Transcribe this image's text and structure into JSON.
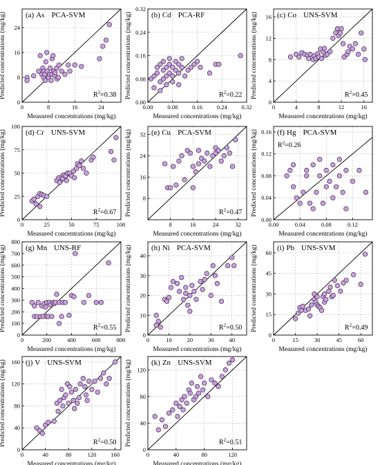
{
  "figure": {
    "point_color": "#c9a0dc",
    "point_edge": "#3b2a48",
    "grid": true,
    "reference_line": "1:1 diagonal"
  },
  "chart_data": [
    {
      "panel": "(a)",
      "element": "As",
      "method": "PCA-SVM",
      "r2_label": "0.38",
      "type": "scatter",
      "xlabel": "Measured concentrations (mg/kg)",
      "ylabel": "Predicted concentrations (mg/kg)",
      "xlim": [
        0,
        30
      ],
      "ylim": [
        0,
        30
      ],
      "xticks": [
        0,
        8,
        16,
        24
      ],
      "yticks": [
        0,
        8,
        16,
        24
      ],
      "tick_labels": [
        "0",
        "8",
        "16",
        "24"
      ],
      "x": [
        1.5,
        1.5,
        3.5,
        5.0,
        5.5,
        6.0,
        6.3,
        6.5,
        6.6,
        6.9,
        7.0,
        7.2,
        7.5,
        7.6,
        8.0,
        8.3,
        8.5,
        8.8,
        9.0,
        9.1,
        9.4,
        9.6,
        9.9,
        10.0,
        10.5,
        10.6,
        11.0,
        11.2,
        12.0,
        13.0,
        14.0,
        14.5,
        16.0,
        18.0,
        23.5,
        24.5,
        25.5,
        26.5
      ],
      "y": [
        8.0,
        7.0,
        8.5,
        10.0,
        15.0,
        9.0,
        11.0,
        8.0,
        10.0,
        9.0,
        7.0,
        13.0,
        16.0,
        10.0,
        8.0,
        9.0,
        11.0,
        7.0,
        9.0,
        14.0,
        15.0,
        10.0,
        8.5,
        9.5,
        11.0,
        7.5,
        8.0,
        12.0,
        10.0,
        9.0,
        12.0,
        10.0,
        12.0,
        11.5,
        14.0,
        18.0,
        20.0,
        25.0
      ]
    },
    {
      "panel": "(b)",
      "element": "Cd",
      "method": "PCA-RF",
      "r2_label": "0.22",
      "type": "scatter",
      "xlabel": "Measured concentrations (mg/kg)",
      "ylabel": "Predicted concentrations (mg/kg)",
      "xlim": [
        0,
        0.32
      ],
      "ylim": [
        0,
        0.32
      ],
      "xticks": [
        0,
        0.08,
        0.16,
        0.24,
        0.32
      ],
      "yticks": [
        0,
        0.08,
        0.16,
        0.24,
        0.32
      ],
      "tick_labels": [
        "0.00",
        "0.08",
        "0.16",
        "0.24",
        "0.32"
      ],
      "x": [
        0.01,
        0.02,
        0.02,
        0.03,
        0.03,
        0.04,
        0.04,
        0.04,
        0.05,
        0.05,
        0.05,
        0.06,
        0.06,
        0.06,
        0.07,
        0.07,
        0.07,
        0.08,
        0.08,
        0.08,
        0.09,
        0.09,
        0.1,
        0.1,
        0.1,
        0.11,
        0.11,
        0.12,
        0.13,
        0.14,
        0.15,
        0.16,
        0.17,
        0.2,
        0.22,
        0.23,
        0.3
      ],
      "y": [
        0.08,
        0.05,
        0.09,
        0.1,
        0.12,
        0.13,
        0.04,
        0.07,
        0.08,
        0.11,
        0.14,
        0.09,
        0.12,
        0.06,
        0.1,
        0.13,
        0.15,
        0.07,
        0.09,
        0.12,
        0.11,
        0.14,
        0.06,
        0.1,
        0.13,
        0.12,
        0.15,
        0.09,
        0.11,
        0.12,
        0.13,
        0.14,
        0.12,
        0.1,
        0.13,
        0.13,
        0.16
      ]
    },
    {
      "panel": "(c)",
      "element": "Co",
      "method": "UNS-SVM",
      "r2_label": "0.45",
      "type": "scatter",
      "xlabel": "Measured concentrations (mg/kg)",
      "ylabel": "Predicted concentrations (mg/kg)",
      "xlim": [
        0,
        17.5
      ],
      "ylim": [
        0,
        17.5
      ],
      "xticks": [
        0,
        4,
        8,
        12,
        16
      ],
      "yticks": [
        0,
        4,
        8,
        12,
        16
      ],
      "tick_labels": [
        "0",
        "4",
        "8",
        "12",
        "16"
      ],
      "x": [
        3.0,
        4.0,
        4.5,
        5.0,
        5.5,
        6.0,
        6.2,
        6.5,
        7.0,
        7.2,
        7.5,
        7.8,
        8.0,
        8.3,
        8.5,
        8.8,
        9.0,
        9.2,
        9.5,
        10.0,
        10.5,
        11.0,
        11.3,
        11.5,
        11.8,
        12.0,
        12.3,
        12.5,
        13.0,
        13.2,
        13.5,
        14.0,
        14.5,
        15.0,
        15.5,
        16.0,
        16.2
      ],
      "y": [
        8.5,
        9.0,
        8.5,
        9.3,
        9.0,
        8.8,
        8.2,
        9.0,
        8.0,
        8.7,
        8.2,
        9.1,
        8.5,
        10.0,
        8.2,
        9.4,
        10.1,
        8.8,
        9.0,
        9.5,
        12.0,
        13.0,
        13.8,
        12.5,
        13.0,
        13.8,
        11.0,
        8.5,
        9.0,
        9.5,
        10.5,
        10.0,
        11.0,
        9.0,
        13.0,
        10.0,
        8.0
      ]
    },
    {
      "panel": "(d)",
      "element": "Cr",
      "method": "UNS-SVM",
      "r2_label": "0.67",
      "type": "scatter",
      "xlabel": "Measured concentrations (mg/kg)",
      "ylabel": "Predicted concentrations (mg/kg)",
      "xlim": [
        0,
        100
      ],
      "ylim": [
        0,
        100
      ],
      "xticks": [
        0,
        25,
        50,
        75,
        100
      ],
      "yticks": [
        0,
        25,
        50,
        75,
        100
      ],
      "tick_labels": [
        "0",
        "25",
        "50",
        "75",
        "100"
      ],
      "x": [
        10,
        12,
        14,
        16,
        18,
        18,
        20,
        22,
        25,
        35,
        37,
        38,
        40,
        41,
        42,
        44,
        45,
        46,
        48,
        50,
        52,
        53,
        55,
        56,
        58,
        60,
        62,
        65,
        70,
        72,
        90,
        93,
        95
      ],
      "y": [
        20,
        22,
        17,
        25,
        28,
        14,
        27,
        26,
        25,
        42,
        45,
        40,
        46,
        44,
        48,
        47,
        42,
        50,
        50,
        47,
        52,
        45,
        55,
        60,
        58,
        63,
        55,
        50,
        64,
        67,
        73,
        64,
        88
      ]
    },
    {
      "panel": "(e)",
      "element": "Cu",
      "method": "PCA-SVM",
      "r2_label": "0.47",
      "type": "scatter",
      "xlabel": "Measured concentrations (mg/kg)",
      "ylabel": "Predicted concentrations (mg/kg)",
      "xlim": [
        0,
        35
      ],
      "ylim": [
        0,
        35
      ],
      "xticks": [
        8,
        16,
        24,
        32
      ],
      "yticks": [
        8,
        16,
        24,
        32
      ],
      "tick_labels": [
        "8",
        "16",
        "24",
        "32"
      ],
      "x": [
        6,
        7,
        8,
        9,
        10,
        11,
        12,
        13,
        14,
        15,
        16,
        16,
        17,
        18,
        18,
        19,
        20,
        21,
        22,
        23,
        24,
        24,
        25,
        26,
        27,
        28,
        29,
        30,
        31
      ],
      "y": [
        21,
        12,
        12,
        20,
        13,
        22,
        24,
        15,
        26,
        25,
        12,
        20,
        18,
        26,
        21,
        23,
        22,
        25,
        20,
        24,
        25,
        27,
        26,
        22,
        24,
        27,
        25,
        20,
        30
      ]
    },
    {
      "panel": "(f)",
      "element": "Hg",
      "method": "PCA-SVM",
      "r2_label": "0.26",
      "type": "scatter",
      "xlabel": "Measured concentrations (mg/kg)",
      "ylabel": "Predicted concentrations (mg/kg)",
      "xlim": [
        0,
        0.15
      ],
      "ylim": [
        0,
        0.17
      ],
      "xticks": [
        0,
        0.04,
        0.08,
        0.12
      ],
      "yticks": [
        0,
        0.04,
        0.08,
        0.12,
        0.16
      ],
      "tick_labels_x": [
        "0.00",
        "0.04",
        "0.08",
        "0.12"
      ],
      "tick_labels_y": [
        "0.00",
        "0.04",
        "0.08",
        "0.12",
        "0.16"
      ],
      "x": [
        0.02,
        0.025,
        0.03,
        0.03,
        0.035,
        0.04,
        0.045,
        0.05,
        0.05,
        0.055,
        0.06,
        0.06,
        0.065,
        0.07,
        0.07,
        0.075,
        0.08,
        0.08,
        0.085,
        0.09,
        0.09,
        0.095,
        0.1,
        0.1,
        0.105,
        0.11,
        0.11,
        0.12,
        0.13,
        0.14
      ],
      "y": [
        0.08,
        0.09,
        0.06,
        0.1,
        0.04,
        0.03,
        0.05,
        0.08,
        0.09,
        0.03,
        0.02,
        0.1,
        0.05,
        0.08,
        0.11,
        0.03,
        0.06,
        0.09,
        0.07,
        0.04,
        0.1,
        0.06,
        0.08,
        0.11,
        0.05,
        0.09,
        0.02,
        0.07,
        0.09,
        0.05
      ]
    },
    {
      "panel": "(g)",
      "element": "Mn",
      "method": "UNS-RF",
      "r2_label": "0.55",
      "type": "scatter",
      "xlabel": "Measured concentrations (mg/kg)",
      "ylabel": "Predicted concentrations (mg/kg)",
      "xlim": [
        0,
        800
      ],
      "ylim": [
        0,
        800
      ],
      "xticks": [
        0,
        200,
        400,
        600,
        800
      ],
      "yticks": [
        0,
        100,
        200,
        300,
        400,
        500,
        600,
        700,
        800
      ],
      "tick_labels_x": [
        "0",
        "200",
        "400",
        "600",
        "800"
      ],
      "tick_labels_y": [
        "0",
        "100",
        "200",
        "300",
        "400",
        "500",
        "600",
        "700",
        "800"
      ],
      "x": [
        80,
        100,
        100,
        120,
        130,
        150,
        160,
        170,
        180,
        190,
        200,
        200,
        210,
        220,
        230,
        240,
        250,
        260,
        270,
        280,
        300,
        300,
        320,
        330,
        350,
        380,
        400,
        420,
        430,
        500,
        540,
        600,
        640,
        700
      ],
      "y": [
        280,
        160,
        250,
        160,
        280,
        160,
        250,
        160,
        270,
        240,
        160,
        280,
        160,
        280,
        260,
        160,
        280,
        270,
        280,
        350,
        280,
        100,
        160,
        280,
        280,
        170,
        340,
        330,
        700,
        280,
        340,
        280,
        280,
        620
      ]
    },
    {
      "panel": "(h)",
      "element": "Ni",
      "method": "PCA-SVM",
      "r2_label": "0.50",
      "type": "scatter",
      "xlabel": "Measured concentrations (mg/kg)",
      "ylabel": "Predicted concentrations (mg/kg)",
      "xlim": [
        0,
        47
      ],
      "ylim": [
        0,
        47
      ],
      "xticks": [
        0,
        10,
        20,
        30,
        40
      ],
      "yticks": [
        0,
        10,
        20,
        30,
        40
      ],
      "tick_labels": [
        "0",
        "10",
        "20",
        "30",
        "40"
      ],
      "x": [
        4,
        4,
        5,
        6,
        8,
        9,
        10,
        11,
        12,
        14,
        15,
        16,
        17,
        18,
        18,
        19,
        20,
        20,
        21,
        22,
        23,
        25,
        26,
        27,
        28,
        30,
        31,
        32,
        33,
        35,
        38,
        40,
        41
      ],
      "y": [
        5,
        10,
        7,
        4,
        18,
        17,
        19,
        24,
        27,
        26,
        22,
        29,
        18,
        21,
        24,
        15,
        12,
        20,
        25,
        22,
        18,
        27,
        23,
        28,
        31,
        20,
        35,
        30,
        26,
        17,
        35,
        39,
        35
      ]
    },
    {
      "panel": "(i)",
      "element": "Pb",
      "method": "UNS-SVM",
      "r2_label": "0.49",
      "type": "scatter",
      "xlabel": "Measured concentrations (mg/kg)",
      "ylabel": "Predicted concentrations (mg/kg)",
      "xlim": [
        0,
        68
      ],
      "ylim": [
        0,
        68
      ],
      "xticks": [
        0,
        15,
        30,
        45,
        60
      ],
      "yticks": [
        0,
        15,
        30,
        45,
        60
      ],
      "tick_labels": [
        "0",
        "15",
        "30",
        "45",
        "60"
      ],
      "x": [
        15,
        17,
        18,
        19,
        20,
        22,
        24,
        25,
        26,
        28,
        28,
        29,
        30,
        30,
        31,
        32,
        33,
        34,
        35,
        35,
        36,
        38,
        39,
        40,
        41,
        42,
        44,
        46,
        48,
        50,
        55,
        60,
        63
      ],
      "y": [
        12,
        16,
        20,
        18,
        21,
        18,
        19,
        14,
        22,
        26,
        30,
        24,
        28,
        22,
        21,
        20,
        18,
        28,
        24,
        30,
        26,
        32,
        35,
        28,
        29,
        40,
        36,
        32,
        38,
        40,
        44,
        37,
        59
      ]
    },
    {
      "panel": "(j)",
      "element": "V",
      "method": "UNS-SVM",
      "r2_label": "0.50",
      "type": "scatter",
      "xlabel": "Measured concentrations (mg/kg)",
      "ylabel": "Predicted concentrations (mg/kg)",
      "xlim": [
        0,
        170
      ],
      "ylim": [
        0,
        170
      ],
      "xticks": [
        0,
        40,
        80,
        120,
        160
      ],
      "yticks": [
        0,
        40,
        80,
        120,
        160
      ],
      "tick_labels": [
        "0",
        "40",
        "80",
        "120",
        "160"
      ],
      "x": [
        25,
        30,
        35,
        40,
        45,
        55,
        60,
        62,
        65,
        68,
        70,
        72,
        75,
        78,
        80,
        82,
        85,
        88,
        90,
        92,
        95,
        98,
        100,
        105,
        108,
        110,
        112,
        115,
        120,
        125,
        130,
        135,
        140,
        145,
        150,
        160
      ],
      "y": [
        40,
        35,
        30,
        45,
        50,
        52,
        85,
        70,
        90,
        110,
        80,
        95,
        100,
        120,
        85,
        115,
        105,
        90,
        75,
        110,
        85,
        95,
        120,
        130,
        115,
        100,
        90,
        125,
        110,
        125,
        105,
        130,
        140,
        120,
        130,
        160
      ]
    },
    {
      "panel": "(k)",
      "element": "Zn",
      "method": "UNS-SVM",
      "r2_label": "0.51",
      "type": "scatter",
      "xlabel": "Measured concentrations (mg/kg)",
      "ylabel": "Predicted concentrations (mg/kg)",
      "xlim": [
        0,
        140
      ],
      "ylim": [
        0,
        140
      ],
      "xticks": [
        0,
        40,
        80,
        120
      ],
      "yticks": [
        0,
        40,
        80,
        120
      ],
      "tick_labels": [
        "0",
        "40",
        "80",
        "120"
      ],
      "x": [
        10,
        15,
        20,
        25,
        30,
        35,
        40,
        42,
        45,
        48,
        50,
        52,
        55,
        58,
        60,
        62,
        65,
        68,
        70,
        72,
        75,
        78,
        80,
        85,
        90,
        95,
        100,
        105,
        110,
        115,
        120
      ],
      "y": [
        50,
        30,
        45,
        35,
        55,
        60,
        70,
        50,
        65,
        75,
        60,
        80,
        70,
        90,
        85,
        100,
        75,
        80,
        95,
        85,
        110,
        90,
        100,
        80,
        105,
        100,
        95,
        110,
        120,
        130,
        135
      ]
    }
  ]
}
